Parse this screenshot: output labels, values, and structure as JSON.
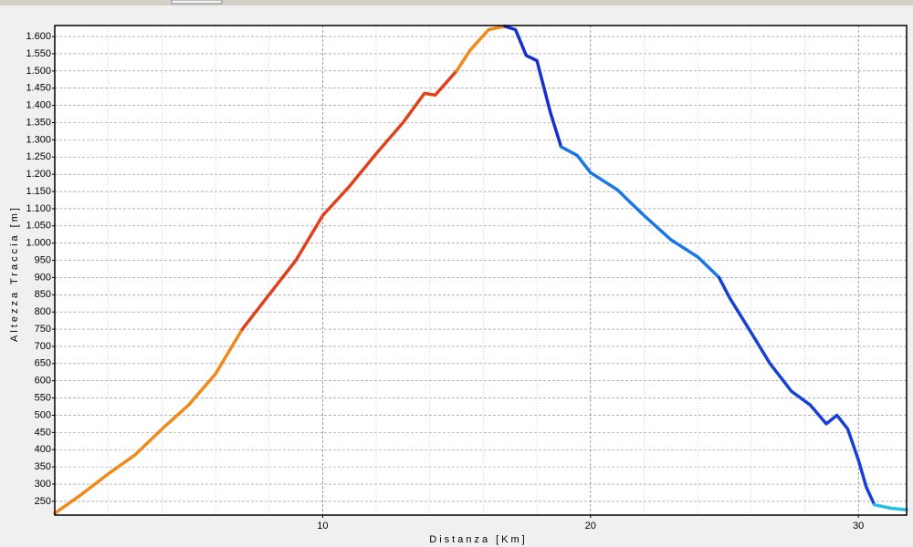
{
  "chart_data": {
    "type": "line",
    "x_label": "Distanza [Km]",
    "y_label": "Altezza Traccia [m]",
    "xlim": [
      0,
      31.8
    ],
    "ylim": [
      210,
      1632
    ],
    "xticks": [
      10,
      20,
      30
    ],
    "x_minor_ticks": [
      2,
      4,
      6,
      8,
      12,
      14,
      16,
      18,
      22,
      24,
      26,
      28
    ],
    "yticks": [
      250,
      300,
      350,
      400,
      450,
      500,
      550,
      600,
      650,
      700,
      750,
      800,
      850,
      900,
      950,
      {
        "value": 1000,
        "label": "1.000"
      },
      {
        "value": 1050,
        "label": "1.050"
      },
      {
        "value": 1100,
        "label": "1.100"
      },
      {
        "value": 1150,
        "label": "1.150"
      },
      {
        "value": 1200,
        "label": "1.200"
      },
      {
        "value": 1250,
        "label": "1.250"
      },
      {
        "value": 1300,
        "label": "1.300"
      },
      {
        "value": 1350,
        "label": "1.350"
      },
      {
        "value": 1400,
        "label": "1.400"
      },
      {
        "value": 1450,
        "label": "1.450"
      },
      {
        "value": 1500,
        "label": "1.500"
      },
      {
        "value": 1550,
        "label": "1.550"
      },
      {
        "value": 1600,
        "label": "1.600"
      }
    ],
    "grid": true,
    "series": [
      {
        "color": "#f08a1c",
        "x": [
          0,
          1,
          2,
          3,
          4,
          5,
          6,
          7
        ],
        "values": [
          215,
          270,
          330,
          385,
          460,
          530,
          620,
          750
        ]
      },
      {
        "color": "#e2401c",
        "x": [
          7,
          8,
          9,
          10,
          11,
          12,
          13,
          13.8,
          14.2,
          15
        ],
        "values": [
          750,
          850,
          950,
          1080,
          1165,
          1260,
          1350,
          1435,
          1430,
          1500
        ]
      },
      {
        "color": "#f08a1c",
        "x": [
          15,
          15.5,
          16.2,
          16.8
        ],
        "values": [
          1500,
          1560,
          1620,
          1630
        ]
      },
      {
        "color": "#1630d0",
        "x": [
          16.8,
          17.2,
          17.6,
          18,
          18.5,
          18.9
        ],
        "values": [
          1630,
          1620,
          1545,
          1530,
          1380,
          1280
        ]
      },
      {
        "color": "#1a78e6",
        "x": [
          18.9,
          19.5,
          20,
          21,
          22,
          23,
          24,
          24.8
        ],
        "values": [
          1280,
          1255,
          1205,
          1155,
          1080,
          1010,
          960,
          900
        ]
      },
      {
        "color": "#1640d8",
        "x": [
          24.8,
          25.2,
          26,
          26.7,
          27.5,
          28.2,
          28.8,
          29.2,
          29.6,
          30,
          30.3,
          30.6
        ],
        "values": [
          900,
          840,
          740,
          650,
          570,
          530,
          475,
          500,
          460,
          370,
          290,
          240
        ]
      },
      {
        "color": "#22c0e8",
        "x": [
          30.6,
          31.2,
          31.8
        ],
        "values": [
          240,
          230,
          225
        ]
      }
    ]
  }
}
